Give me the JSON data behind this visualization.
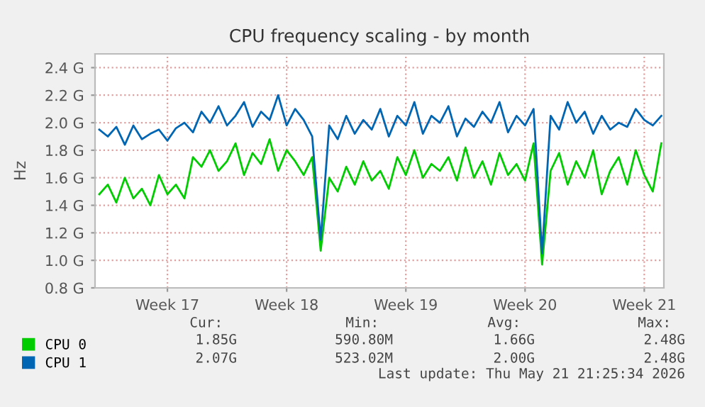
{
  "chart_data": {
    "type": "line",
    "title": "CPU frequency scaling - by month",
    "ylabel": "Hz",
    "categories": [
      null,
      null,
      null,
      null,
      null,
      null,
      null,
      null,
      "Week 17",
      null,
      null,
      null,
      null,
      null,
      null,
      null,
      null,
      null,
      null,
      null,
      null,
      null,
      "Week 18",
      null,
      null,
      null,
      null,
      null,
      null,
      null,
      null,
      null,
      null,
      null,
      null,
      null,
      "Week 19",
      null,
      null,
      null,
      null,
      null,
      null,
      null,
      null,
      null,
      null,
      null,
      null,
      null,
      "Week 20",
      null,
      null,
      null,
      null,
      null,
      null,
      null,
      null,
      null,
      null,
      null,
      null,
      null,
      "Week 21",
      null,
      null
    ],
    "series": [
      {
        "name": "CPU 0",
        "color": "#00cc00",
        "values": [
          1.48,
          1.55,
          1.42,
          1.6,
          1.45,
          1.52,
          1.4,
          1.62,
          1.48,
          1.55,
          1.45,
          1.75,
          1.68,
          1.8,
          1.65,
          1.72,
          1.85,
          1.62,
          1.78,
          1.7,
          1.88,
          1.65,
          1.8,
          1.72,
          1.62,
          1.75,
          1.07,
          1.6,
          1.5,
          1.68,
          1.55,
          1.72,
          1.58,
          1.65,
          1.52,
          1.75,
          1.62,
          1.8,
          1.6,
          1.7,
          1.65,
          1.75,
          1.58,
          1.82,
          1.6,
          1.72,
          1.55,
          1.78,
          1.62,
          1.7,
          1.58,
          1.85,
          0.97,
          1.65,
          1.78,
          1.55,
          1.72,
          1.6,
          1.8,
          1.48,
          1.65,
          1.75,
          1.55,
          1.8,
          1.62,
          1.5,
          1.85
        ]
      },
      {
        "name": "CPU 1",
        "color": "#0066b3",
        "values": [
          1.95,
          1.9,
          1.97,
          1.84,
          1.98,
          1.88,
          1.92,
          1.95,
          1.87,
          1.96,
          2.0,
          1.93,
          2.08,
          2.0,
          2.12,
          1.98,
          2.05,
          2.15,
          1.97,
          2.08,
          2.02,
          2.2,
          1.98,
          2.1,
          2.02,
          1.9,
          1.15,
          1.98,
          1.88,
          2.05,
          1.92,
          2.02,
          1.95,
          2.1,
          1.9,
          2.05,
          1.98,
          2.15,
          1.92,
          2.05,
          2.0,
          2.12,
          1.9,
          2.03,
          1.97,
          2.08,
          2.0,
          2.15,
          1.93,
          2.05,
          1.98,
          2.1,
          1.05,
          2.05,
          1.95,
          2.15,
          2.0,
          2.08,
          1.92,
          2.05,
          1.95,
          2.0,
          1.97,
          2.1,
          2.02,
          1.98,
          2.05
        ]
      }
    ],
    "ylim": [
      0.8,
      2.5
    ],
    "yticks": [
      {
        "value": 0.8,
        "label": "0.8 G"
      },
      {
        "value": 1.0,
        "label": "1.0 G"
      },
      {
        "value": 1.2,
        "label": "1.2 G"
      },
      {
        "value": 1.4,
        "label": "1.4 G"
      },
      {
        "value": 1.6,
        "label": "1.6 G"
      },
      {
        "value": 1.8,
        "label": "1.8 G"
      },
      {
        "value": 2.0,
        "label": "2.0 G"
      },
      {
        "value": 2.2,
        "label": "2.2 G"
      },
      {
        "value": 2.4,
        "label": "2.4 G"
      }
    ],
    "grid": true,
    "legend": "bottom left",
    "annotations": [
      "Cur:",
      "Min:",
      "Avg:",
      "Max:",
      "1.85G",
      "590.80M",
      "1.66G",
      "2.48G",
      "2.07G",
      "523.02M",
      "2.00G",
      "2.48G",
      "Last update: Thu May 21 21:25:34 2026"
    ]
  }
}
